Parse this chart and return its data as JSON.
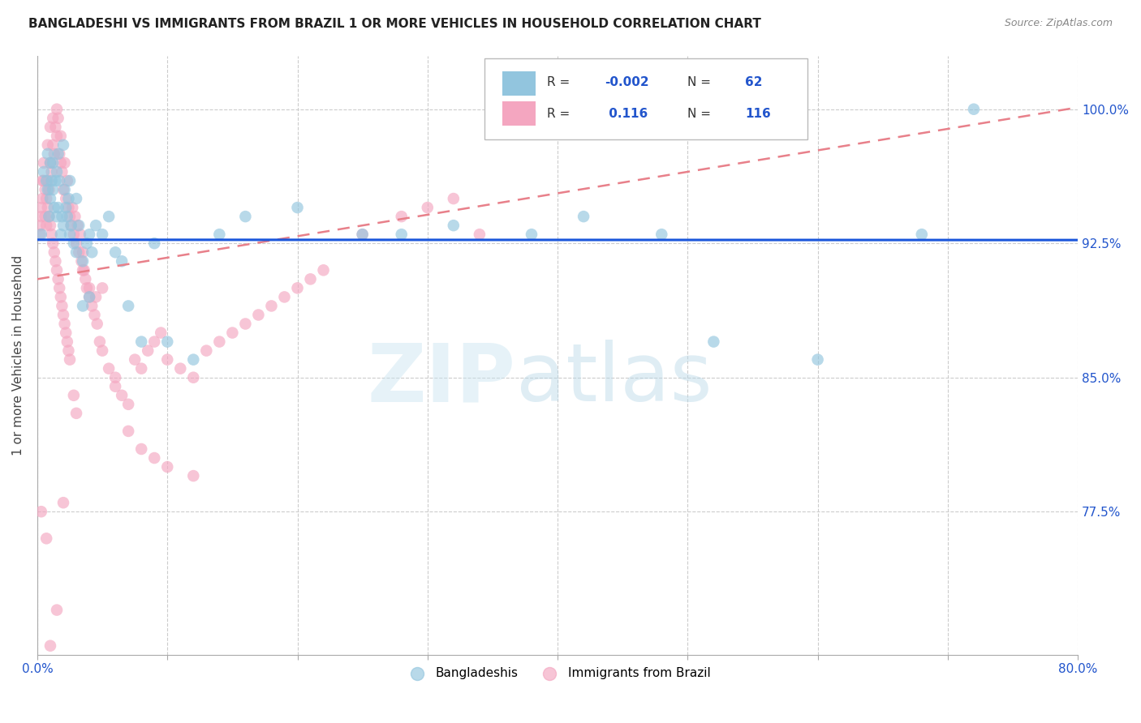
{
  "title": "BANGLADESHI VS IMMIGRANTS FROM BRAZIL 1 OR MORE VEHICLES IN HOUSEHOLD CORRELATION CHART",
  "source": "Source: ZipAtlas.com",
  "ylabel": "1 or more Vehicles in Household",
  "ytick_labels": [
    "100.0%",
    "92.5%",
    "85.0%",
    "77.5%"
  ],
  "ytick_values": [
    1.0,
    0.925,
    0.85,
    0.775
  ],
  "xlim": [
    0.0,
    0.8
  ],
  "ylim": [
    0.695,
    1.03
  ],
  "blue_R": "-0.002",
  "blue_N": "62",
  "pink_R": "0.116",
  "pink_N": "116",
  "blue_color": "#92C5DE",
  "pink_color": "#F4A6C0",
  "blue_line_color": "#1A56DB",
  "pink_line_color": "#E8808A",
  "blue_line_y_intercept": 0.927,
  "blue_line_slope": -0.0002,
  "pink_line_y_intercept": 0.905,
  "pink_line_slope": 0.12,
  "bangladeshi_x": [
    0.003,
    0.005,
    0.007,
    0.008,
    0.009,
    0.01,
    0.01,
    0.011,
    0.012,
    0.013,
    0.014,
    0.015,
    0.015,
    0.016,
    0.017,
    0.018,
    0.019,
    0.02,
    0.021,
    0.022,
    0.023,
    0.024,
    0.025,
    0.026,
    0.028,
    0.03,
    0.032,
    0.035,
    0.038,
    0.04,
    0.042,
    0.045,
    0.05,
    0.055,
    0.06,
    0.065,
    0.07,
    0.08,
    0.09,
    0.1,
    0.12,
    0.14,
    0.16,
    0.2,
    0.25,
    0.28,
    0.32,
    0.38,
    0.42,
    0.48,
    0.52,
    0.6,
    0.68,
    0.72,
    0.008,
    0.012,
    0.016,
    0.02,
    0.025,
    0.03,
    0.035,
    0.04
  ],
  "bangladeshi_y": [
    0.93,
    0.965,
    0.96,
    0.955,
    0.94,
    0.95,
    0.97,
    0.96,
    0.955,
    0.945,
    0.96,
    0.94,
    0.965,
    0.945,
    0.96,
    0.93,
    0.94,
    0.935,
    0.955,
    0.945,
    0.94,
    0.95,
    0.93,
    0.935,
    0.925,
    0.92,
    0.935,
    0.915,
    0.925,
    0.93,
    0.92,
    0.935,
    0.93,
    0.94,
    0.92,
    0.915,
    0.89,
    0.87,
    0.925,
    0.87,
    0.86,
    0.93,
    0.94,
    0.945,
    0.93,
    0.93,
    0.935,
    0.93,
    0.94,
    0.93,
    0.87,
    0.86,
    0.93,
    1.0,
    0.975,
    0.97,
    0.975,
    0.98,
    0.96,
    0.95,
    0.89,
    0.895
  ],
  "brazil_x": [
    0.002,
    0.003,
    0.004,
    0.005,
    0.006,
    0.007,
    0.008,
    0.008,
    0.009,
    0.01,
    0.01,
    0.011,
    0.012,
    0.012,
    0.013,
    0.014,
    0.015,
    0.015,
    0.016,
    0.017,
    0.018,
    0.018,
    0.019,
    0.02,
    0.021,
    0.022,
    0.023,
    0.024,
    0.025,
    0.026,
    0.027,
    0.028,
    0.029,
    0.03,
    0.031,
    0.032,
    0.033,
    0.034,
    0.035,
    0.036,
    0.037,
    0.038,
    0.04,
    0.042,
    0.044,
    0.046,
    0.048,
    0.05,
    0.055,
    0.06,
    0.065,
    0.07,
    0.075,
    0.08,
    0.085,
    0.09,
    0.095,
    0.1,
    0.11,
    0.12,
    0.13,
    0.14,
    0.15,
    0.16,
    0.17,
    0.18,
    0.19,
    0.2,
    0.21,
    0.22,
    0.002,
    0.003,
    0.004,
    0.005,
    0.006,
    0.007,
    0.008,
    0.009,
    0.01,
    0.011,
    0.012,
    0.013,
    0.014,
    0.015,
    0.016,
    0.017,
    0.018,
    0.019,
    0.02,
    0.021,
    0.022,
    0.023,
    0.024,
    0.025,
    0.028,
    0.03,
    0.035,
    0.04,
    0.045,
    0.05,
    0.06,
    0.07,
    0.08,
    0.09,
    0.1,
    0.12,
    0.25,
    0.28,
    0.3,
    0.32,
    0.34,
    0.003,
    0.007,
    0.01,
    0.015,
    0.02
  ],
  "brazil_y": [
    0.935,
    0.945,
    0.96,
    0.97,
    0.94,
    0.935,
    0.96,
    0.98,
    0.955,
    0.97,
    0.99,
    0.965,
    0.98,
    0.995,
    0.975,
    0.99,
    1.0,
    0.985,
    0.995,
    0.975,
    0.97,
    0.985,
    0.965,
    0.955,
    0.97,
    0.95,
    0.96,
    0.945,
    0.94,
    0.935,
    0.945,
    0.93,
    0.94,
    0.925,
    0.935,
    0.92,
    0.93,
    0.915,
    0.92,
    0.91,
    0.905,
    0.9,
    0.895,
    0.89,
    0.885,
    0.88,
    0.87,
    0.865,
    0.855,
    0.85,
    0.84,
    0.835,
    0.86,
    0.855,
    0.865,
    0.87,
    0.875,
    0.86,
    0.855,
    0.85,
    0.865,
    0.87,
    0.875,
    0.88,
    0.885,
    0.89,
    0.895,
    0.9,
    0.905,
    0.91,
    0.93,
    0.94,
    0.95,
    0.96,
    0.955,
    0.95,
    0.945,
    0.94,
    0.935,
    0.93,
    0.925,
    0.92,
    0.915,
    0.91,
    0.905,
    0.9,
    0.895,
    0.89,
    0.885,
    0.88,
    0.875,
    0.87,
    0.865,
    0.86,
    0.84,
    0.83,
    0.91,
    0.9,
    0.895,
    0.9,
    0.845,
    0.82,
    0.81,
    0.805,
    0.8,
    0.795,
    0.93,
    0.94,
    0.945,
    0.95,
    0.93,
    0.775,
    0.76,
    0.7,
    0.72,
    0.78
  ]
}
